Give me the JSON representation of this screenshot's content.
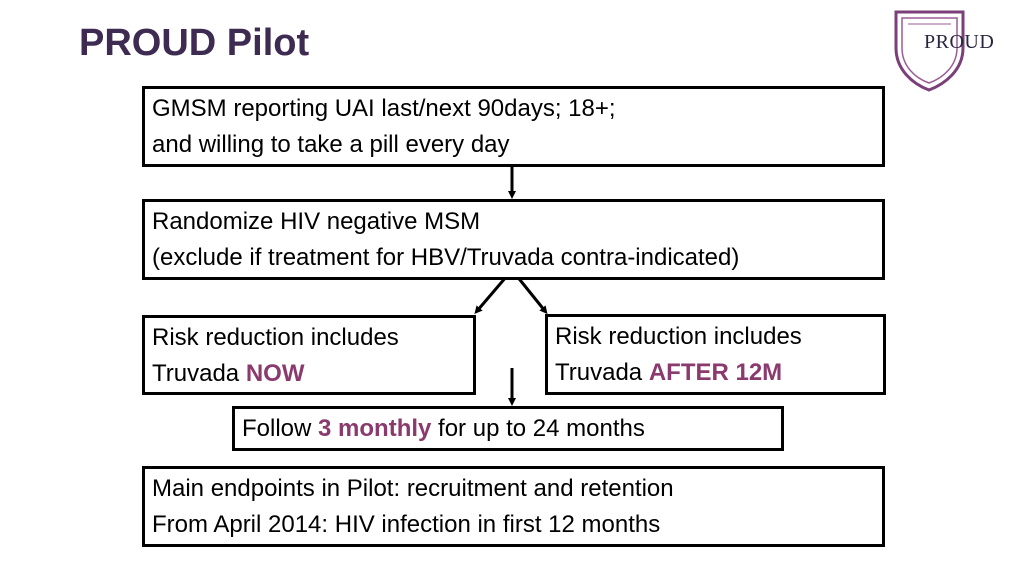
{
  "header": {
    "title": "PROUD Pilot"
  },
  "logo": {
    "text": "PROUD",
    "color": "#7b3f7a"
  },
  "accent_color": "#8b3a6e",
  "flow": {
    "eligibility": {
      "line1": "GMSM reporting UAI last/next 90days; 18+;",
      "line2": "and willing to take a pill every day"
    },
    "randomize": {
      "line1": "Randomize HIV negative MSM",
      "line2": "(exclude if treatment for HBV/Truvada contra-indicated)"
    },
    "arm_immediate": {
      "line1": "Risk reduction includes",
      "line2_prefix": "Truvada ",
      "line2_highlight": "NOW"
    },
    "arm_deferred": {
      "line1": "Risk reduction includes",
      "line2_prefix": "Truvada ",
      "line2_highlight": "AFTER 12M"
    },
    "follow_up": {
      "prefix": "Follow ",
      "highlight": "3 monthly",
      "suffix": " for up to 24 months"
    },
    "endpoints": {
      "line1": "Main endpoints in Pilot: recruitment and retention",
      "line2": "From April 2014: HIV infection in first 12 months"
    }
  }
}
